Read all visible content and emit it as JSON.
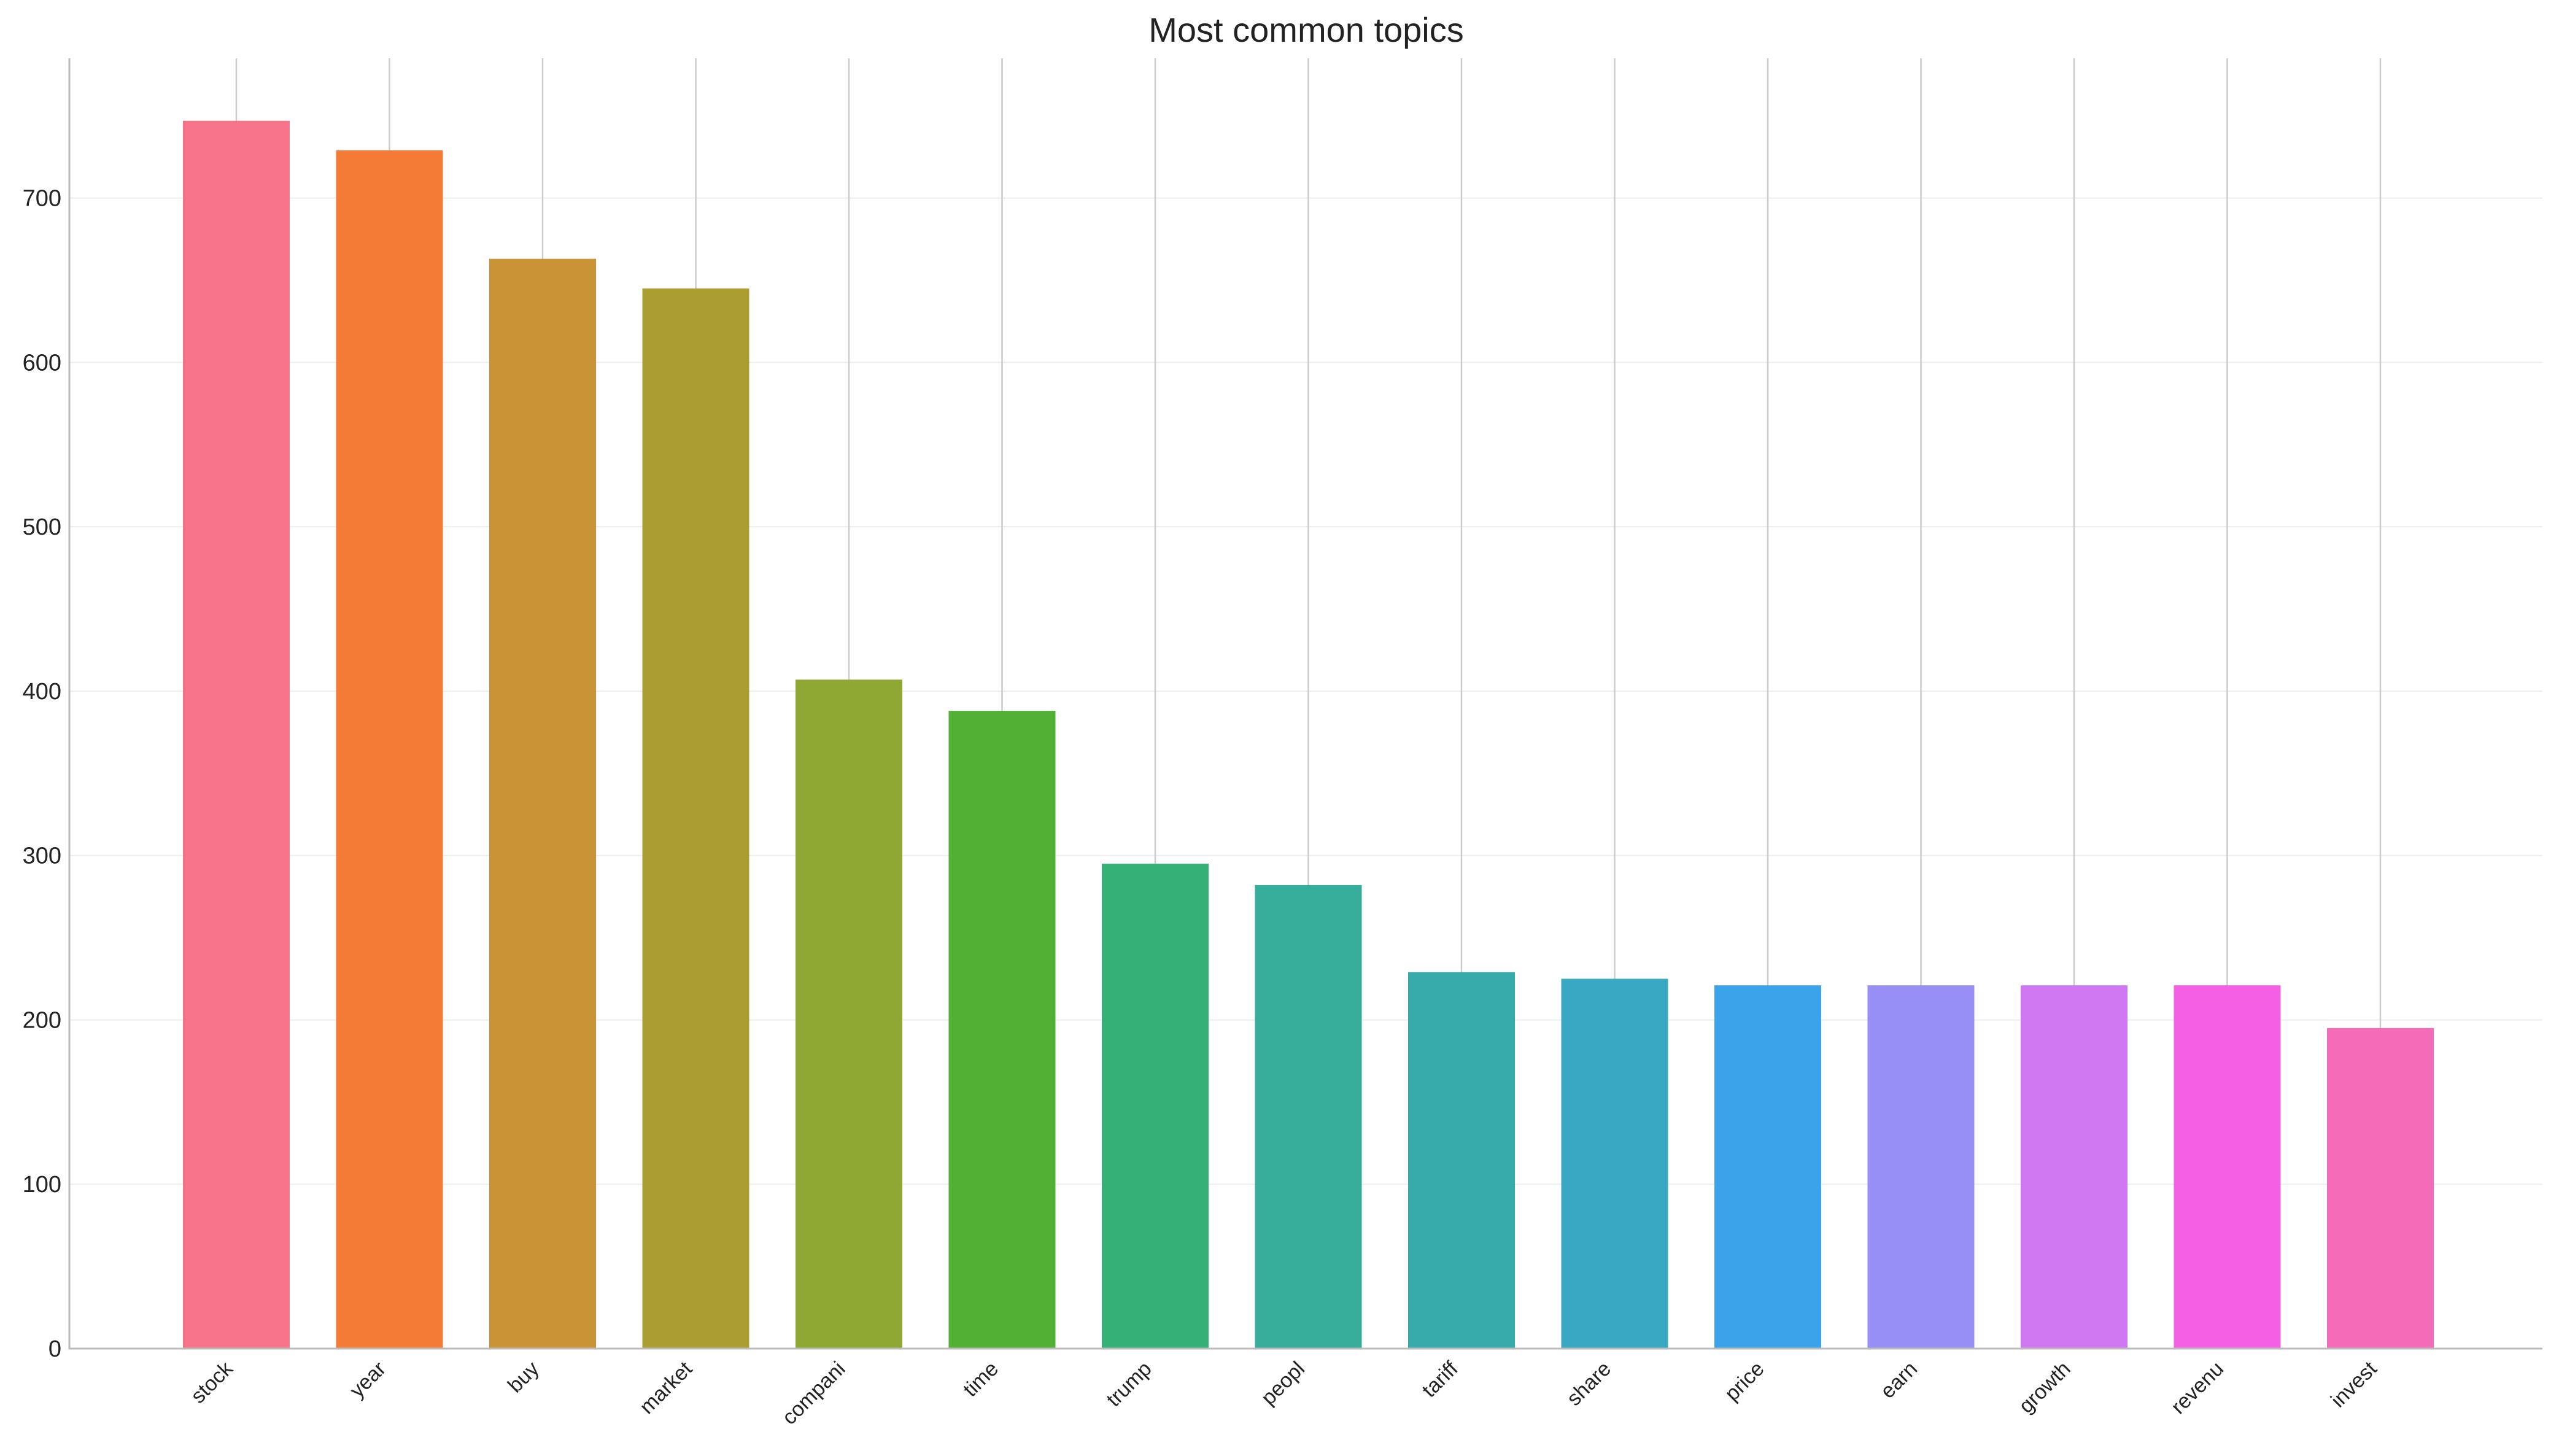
{
  "chart_data": {
    "type": "bar",
    "title": "Most common topics",
    "xlabel": "",
    "ylabel": "",
    "categories": [
      "stock",
      "year",
      "buy",
      "market",
      "compani",
      "time",
      "trump",
      "peopl",
      "tariff",
      "share",
      "price",
      "earn",
      "growth",
      "revenu",
      "invest"
    ],
    "values": [
      747,
      729,
      663,
      645,
      407,
      388,
      295,
      282,
      229,
      225,
      221,
      221,
      221,
      221,
      195
    ],
    "colors": [
      "#f7748b",
      "#f37b35",
      "#c99336",
      "#ac9d33",
      "#8fa733",
      "#52b035",
      "#35b077",
      "#36ae9b",
      "#37abac",
      "#39a9c3",
      "#3ba3ea",
      "#988ff5",
      "#ce77f0",
      "#f45fe3",
      "#f56bb7"
    ],
    "ylim": [
      0,
      785
    ],
    "yticks": [
      0,
      100,
      200,
      300,
      400,
      500,
      600,
      700
    ],
    "grid": true
  }
}
